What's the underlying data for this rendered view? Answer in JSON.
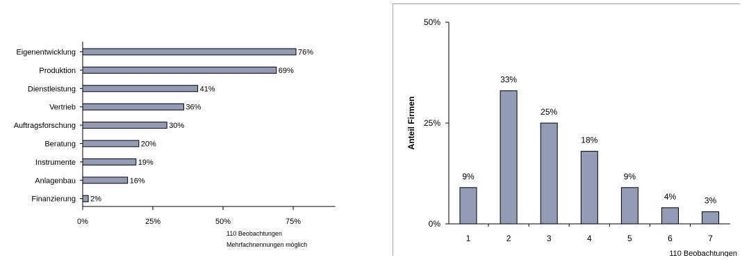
{
  "colors": {
    "bar_fill": "#939cb5",
    "bar_stroke": "#000000",
    "axis": "#000000",
    "text": "#000000"
  },
  "chart_data": [
    {
      "type": "bar",
      "orientation": "horizontal",
      "categories": [
        "Eigenentwicklung",
        "Produktion",
        "Dienstleistung",
        "Vertrieb",
        "Auftragsforschung",
        "Beratung",
        "Instrumente",
        "Anlagenbau",
        "Finanzierung"
      ],
      "values": [
        76,
        69,
        41,
        36,
        30,
        20,
        19,
        16,
        2
      ],
      "value_labels": [
        "76%",
        "69%",
        "41%",
        "36%",
        "30%",
        "20%",
        "19%",
        "16%",
        "2%"
      ],
      "xticks": [
        0,
        25,
        50,
        75
      ],
      "xtick_labels": [
        "0%",
        "25%",
        "50%",
        "75%"
      ],
      "xlim": [
        0,
        90
      ],
      "grid": false,
      "notes": [
        "110 Beobachtungen",
        "Mehrfachnennungen möglich"
      ]
    },
    {
      "type": "bar",
      "orientation": "vertical",
      "categories": [
        "1",
        "2",
        "3",
        "4",
        "5",
        "6",
        "7"
      ],
      "values": [
        9,
        33,
        25,
        18,
        9,
        4,
        3
      ],
      "value_labels": [
        "9%",
        "33%",
        "25%",
        "18%",
        "9%",
        "4%",
        "3%"
      ],
      "ylabel": "Anteil Firmen",
      "yticks": [
        0,
        25,
        50
      ],
      "ytick_labels": [
        "0%",
        "25%",
        "50%"
      ],
      "ylim": [
        0,
        50
      ],
      "grid": false,
      "notes": [
        "110 Beobachtungen"
      ]
    }
  ]
}
